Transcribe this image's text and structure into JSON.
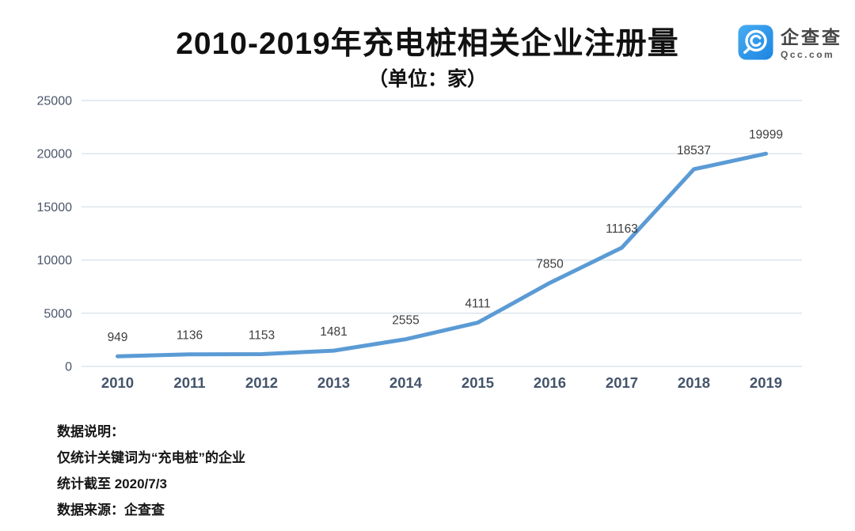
{
  "header": {
    "title": "2010-2019年充电桩相关企业注册量",
    "subtitle": "（单位：家）"
  },
  "logo": {
    "name": "企查查",
    "domain": "Qcc.com",
    "brand_color_top": "#46ACF2",
    "brand_color_bottom": "#1D85E2"
  },
  "chart_data": {
    "type": "line",
    "title": "2010-2019年充电桩相关企业注册量",
    "unit_label": "（单位：家）",
    "categories": [
      "2010",
      "2011",
      "2012",
      "2013",
      "2014",
      "2015",
      "2016",
      "2017",
      "2018",
      "2019"
    ],
    "values": [
      949,
      1136,
      1153,
      1481,
      2555,
      4111,
      7850,
      11163,
      18537,
      19999
    ],
    "xlabel": "",
    "ylabel": "",
    "ylim": [
      0,
      25000
    ],
    "yticks": [
      0,
      5000,
      10000,
      15000,
      20000,
      25000
    ],
    "grid": true,
    "legend_position": "none",
    "line_color": "#5B9BD5",
    "grid_color": "#DEE4EB",
    "axis_label_color": "#44546A",
    "tick_label_color": "#4A566B",
    "data_label_color": "#3D3D3D"
  },
  "notes": {
    "lines": [
      "数据说明：",
      "仅统计关键词为“充电桩”的企业",
      "统计截至 2020/7/3",
      "数据来源：企查查"
    ]
  }
}
